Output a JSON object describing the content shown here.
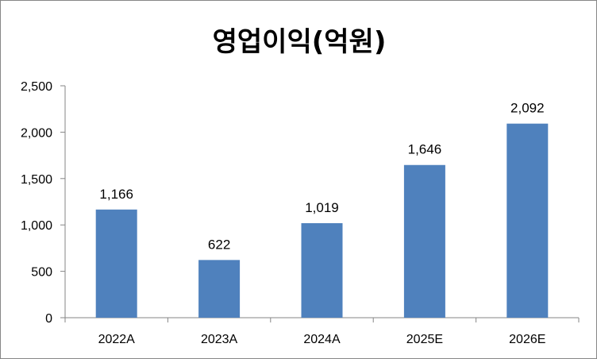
{
  "chart_data": {
    "type": "bar",
    "title": "영업이익(억원)",
    "categories": [
      "2022A",
      "2023A",
      "2024A",
      "2025E",
      "2026E"
    ],
    "values": [
      1166,
      622,
      1019,
      1646,
      2092
    ],
    "data_labels": [
      "1,166",
      "622",
      "1,019",
      "1,646",
      "2,092"
    ],
    "ylim": [
      0,
      2500
    ],
    "yticks": [
      0,
      500,
      1000,
      1500,
      2000,
      2500
    ],
    "ytick_labels": [
      "0",
      "500",
      "1,000",
      "1,500",
      "2,000",
      "2,500"
    ],
    "xlabel": "",
    "ylabel": "",
    "grid": false,
    "legend": "none",
    "bar_color": "#4F81BD"
  }
}
